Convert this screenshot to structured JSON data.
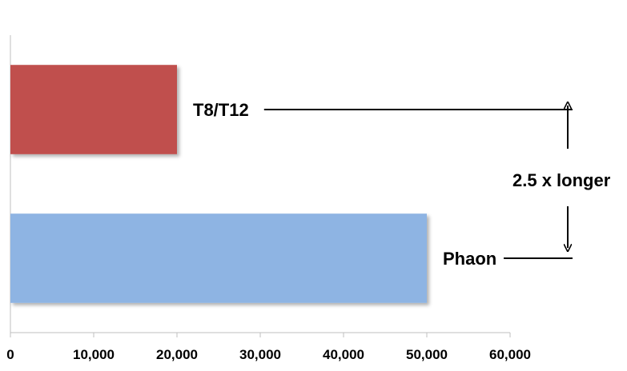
{
  "chart_data": {
    "type": "bar",
    "orientation": "horizontal",
    "categories": [
      "T8/T12",
      "Phaon"
    ],
    "values": [
      20000,
      50000
    ],
    "colors": [
      "#C0504D",
      "#8EB4E3"
    ],
    "xlim": [
      0,
      60000
    ],
    "xticks": [
      0,
      10000,
      20000,
      30000,
      40000,
      50000,
      60000
    ],
    "xtick_labels": [
      "0",
      "10,000",
      "20,000",
      "30,000",
      "40,000",
      "50,000",
      "60,000"
    ],
    "title": "",
    "xlabel": "",
    "ylabel": "",
    "grid": false,
    "annotation": "2.5 x longer"
  }
}
